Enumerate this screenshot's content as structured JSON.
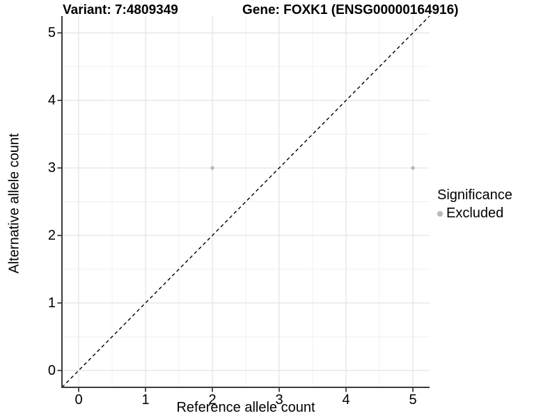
{
  "header": {
    "variant_title": "Variant: 7:4809349",
    "gene_title": "Gene: FOXK1 (ENSG00000164916)"
  },
  "axes": {
    "x_label": "Reference allele count",
    "y_label": "Alternative allele count"
  },
  "legend": {
    "title": "Significance",
    "items": [
      {
        "label": "Excluded",
        "color": "#B8B8B8",
        "marker": "circle-icon"
      }
    ]
  },
  "chart_data": {
    "type": "scatter",
    "title": "Variant: 7:4809349 — Gene: FOXK1 (ENSG00000164916)",
    "xlabel": "Reference allele count",
    "ylabel": "Alternative allele count",
    "xlim": [
      -0.25,
      5.25
    ],
    "ylim": [
      -0.25,
      5.25
    ],
    "x_ticks": [
      0,
      1,
      2,
      3,
      4,
      5
    ],
    "y_ticks": [
      0,
      1,
      2,
      3,
      4,
      5
    ],
    "grid": "major and minor gridlines, light gray on white background",
    "legend_position": "right",
    "series": [
      {
        "name": "Excluded",
        "color": "#B8B8B8",
        "points": [
          {
            "x": 2,
            "y": 3
          },
          {
            "x": 5,
            "y": 3
          }
        ]
      }
    ],
    "reference_line": {
      "kind": "identity y=x",
      "style": "dashed",
      "color": "#000000"
    }
  },
  "colors": {
    "background": "#FFFFFF",
    "grid_major": "#E3E3E3",
    "grid_minor": "#F0F0F0",
    "axis": "#3C3C3C",
    "point": "#B8B8B8"
  }
}
